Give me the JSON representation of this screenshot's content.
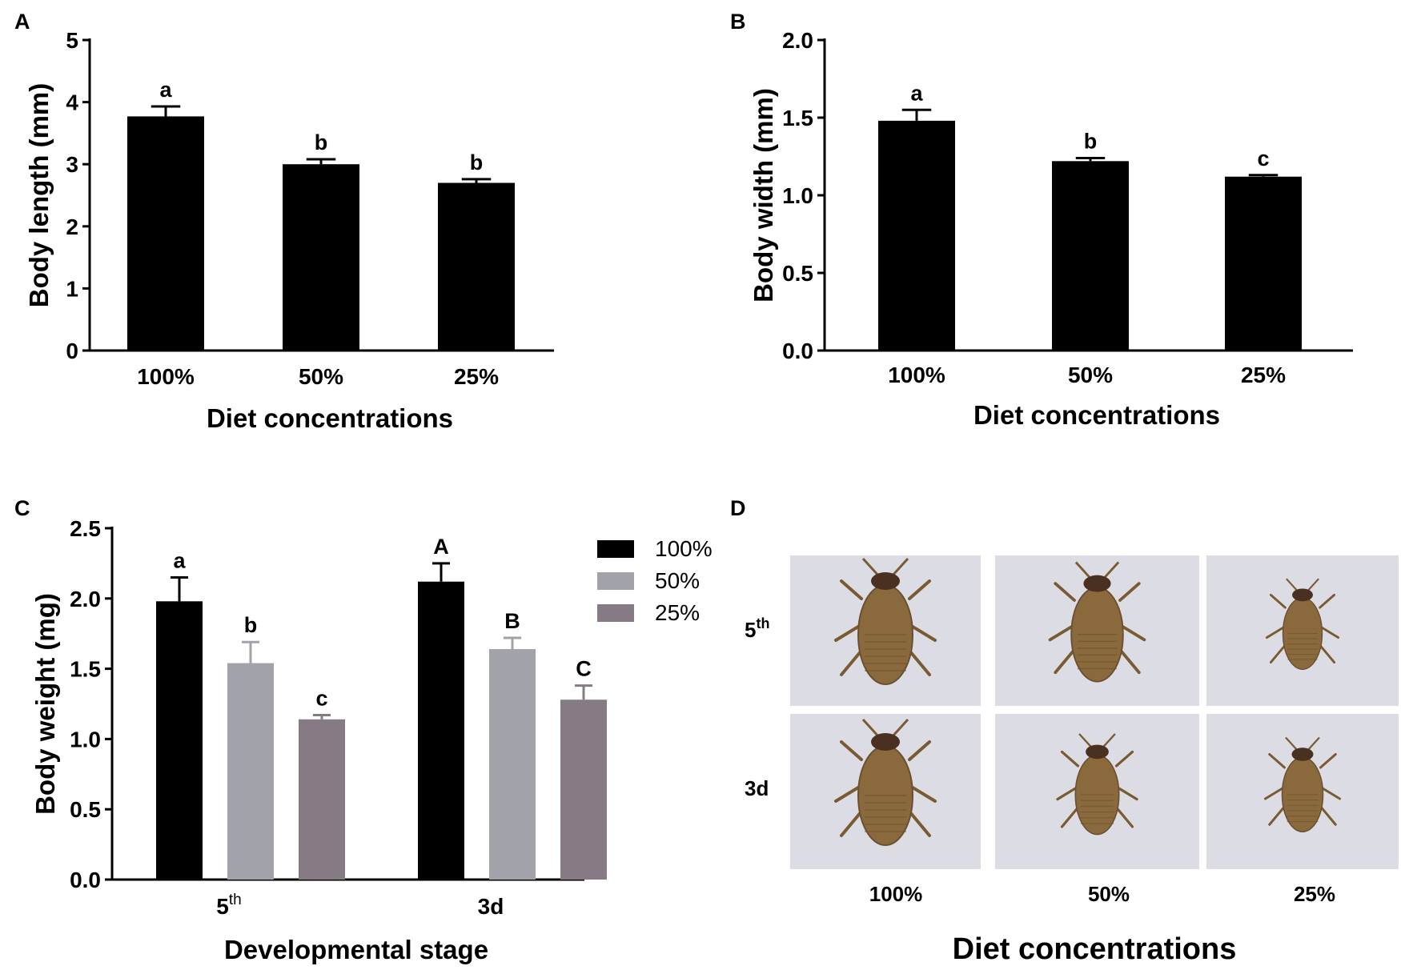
{
  "chart_data": [
    {
      "panel": "A",
      "type": "bar",
      "categories": [
        "100%",
        "50%",
        "25%"
      ],
      "values": [
        3.77,
        3.0,
        2.7
      ],
      "errors": [
        0.16,
        0.08,
        0.06
      ],
      "significance": [
        "a",
        "b",
        "b"
      ],
      "xlabel": "Diet concentrations",
      "ylabel": "Body length (mm)",
      "ylim": [
        0,
        5
      ],
      "yticks": [
        "0",
        "1",
        "2",
        "3",
        "4",
        "5"
      ],
      "color": "#000000"
    },
    {
      "panel": "B",
      "type": "bar",
      "categories": [
        "100%",
        "50%",
        "25%"
      ],
      "values": [
        1.48,
        1.22,
        1.12
      ],
      "errors": [
        0.07,
        0.02,
        0.01
      ],
      "significance": [
        "a",
        "b",
        "c"
      ],
      "xlabel": "Diet concentrations",
      "ylabel": "Body width (mm)",
      "ylim": [
        0,
        2
      ],
      "yticks": [
        "0.0",
        "0.5",
        "1.0",
        "1.5",
        "2.0"
      ],
      "color": "#000000"
    },
    {
      "panel": "C",
      "type": "bar",
      "categories": [
        "5",
        "3d"
      ],
      "category_superscripts": [
        "th",
        ""
      ],
      "series": [
        {
          "name": "100%",
          "values": [
            1.98,
            2.12
          ],
          "errors": [
            0.17,
            0.13
          ],
          "significance": [
            "a",
            "A"
          ],
          "color": "#000000"
        },
        {
          "name": "50%",
          "values": [
            1.54,
            1.64
          ],
          "errors": [
            0.15,
            0.08
          ],
          "significance": [
            "b",
            "B"
          ],
          "color": "#a2a2aa"
        },
        {
          "name": "25%",
          "values": [
            1.14,
            1.28
          ],
          "errors": [
            0.03,
            0.1
          ],
          "significance": [
            "c",
            "C"
          ],
          "color": "#867b85"
        }
      ],
      "xlabel": "Developmental stage",
      "ylabel": "Body weight (mg)",
      "ylim": [
        0,
        2.5
      ],
      "yticks": [
        "0.0",
        "0.5",
        "1.0",
        "1.5",
        "2.0",
        "2.5"
      ],
      "legend_position": "top-right"
    }
  ],
  "panel_labels": {
    "a": "A",
    "b": "B",
    "c": "C",
    "d": "D"
  },
  "photo_panel": {
    "rows": [
      {
        "label": "5",
        "superscript": "th"
      },
      {
        "label": "3d",
        "superscript": ""
      }
    ],
    "columns": [
      "100%",
      "50%",
      "25%"
    ],
    "title": "Diet concentrations",
    "background_color": "#dcdde4",
    "insect_color": "#8a6a3c"
  }
}
